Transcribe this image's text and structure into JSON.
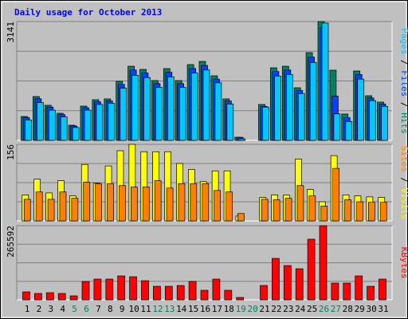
{
  "chart_data": [
    {
      "type": "bar",
      "title": "Daily usage for October 2013",
      "categories": [
        "1",
        "2",
        "3",
        "4",
        "5",
        "6",
        "7",
        "8",
        "9",
        "10",
        "11",
        "12",
        "13",
        "14",
        "15",
        "16",
        "17",
        "18",
        "19",
        "20",
        "21",
        "22",
        "23",
        "24",
        "25",
        "26",
        "27",
        "28",
        "29",
        "30",
        "31"
      ],
      "category_colors": [
        "#000000",
        "#000000",
        "#000000",
        "#000000",
        "#00805c",
        "#00805c",
        "#000000",
        "#000000",
        "#000000",
        "#000000",
        "#000000",
        "#00805c",
        "#00805c",
        "#000000",
        "#000000",
        "#000000",
        "#000000",
        "#000000",
        "#00805c",
        "#00805c",
        "#000000",
        "#000000",
        "#000000",
        "#000000",
        "#000000",
        "#00805c",
        "#00805c",
        "#000000",
        "#000000",
        "#000000",
        "#000000"
      ],
      "legend_separator": " / ",
      "ylim": [
        0,
        3141
      ],
      "yticks": [
        3141
      ],
      "series": [
        {
          "name": "Hits",
          "color": "#00805c",
          "values": [
            632,
            1159,
            928,
            717,
            400,
            906,
            1075,
            1096,
            1560,
            1960,
            1876,
            1581,
            1897,
            1581,
            2003,
            2087,
            1707,
            1096,
            84,
            0,
            949,
            1918,
            1960,
            1391,
            2319,
            3141,
            1855,
            696,
            1834,
            1180,
            1012
          ]
        },
        {
          "name": "Files",
          "color": "#0040ff",
          "values": [
            600,
            1100,
            880,
            680,
            380,
            860,
            1020,
            1040,
            1480,
            1860,
            1780,
            1500,
            1800,
            1500,
            1900,
            1980,
            1620,
            1040,
            80,
            0,
            900,
            1820,
            1860,
            1320,
            2200,
            2980,
            1170,
            600,
            1740,
            1120,
            960
          ]
        },
        {
          "name": "Pages",
          "color": "#00c8ff",
          "values": [
            540,
            1000,
            800,
            620,
            340,
            800,
            950,
            980,
            1380,
            1720,
            1660,
            1400,
            1680,
            1400,
            1780,
            1860,
            1520,
            960,
            40,
            0,
            880,
            1700,
            1740,
            1240,
            2060,
            3100,
            700,
            500,
            1620,
            1050,
            900
          ]
        }
      ]
    },
    {
      "type": "bar",
      "ylim": [
        0,
        156
      ],
      "yticks": [
        156
      ],
      "series": [
        {
          "name": "Visits",
          "color": "#ffff00",
          "values": [
            53,
            85,
            57,
            82,
            51,
            115,
            77,
            112,
            143,
            156,
            141,
            141,
            141,
            117,
            105,
            80,
            102,
            102,
            10,
            0,
            48,
            53,
            53,
            126,
            64,
            39,
            133,
            53,
            51,
            49,
            48
          ]
        },
        {
          "name": "Sites",
          "color": "#ff8000",
          "values": [
            44,
            59,
            44,
            59,
            46,
            79,
            76,
            76,
            72,
            69,
            69,
            82,
            67,
            76,
            76,
            76,
            62,
            59,
            15,
            0,
            44,
            43,
            46,
            72,
            51,
            30,
            107,
            43,
            39,
            38,
            38
          ]
        }
      ]
    },
    {
      "type": "bar",
      "ylim": [
        0,
        265592
      ],
      "yticks": [
        265592
      ],
      "series": [
        {
          "name": "KBytes",
          "color": "#ff0000",
          "values": [
            28560,
            22850,
            25700,
            22850,
            14280,
            65690,
            74260,
            74260,
            85680,
            82820,
            68540,
            48550,
            48550,
            51410,
            65690,
            34270,
            74260,
            34270,
            8570,
            0,
            51410,
            148500,
            122800,
            111400,
            217100,
            265592,
            59980,
            59980,
            85680,
            48550,
            74260
          ]
        }
      ]
    }
  ]
}
